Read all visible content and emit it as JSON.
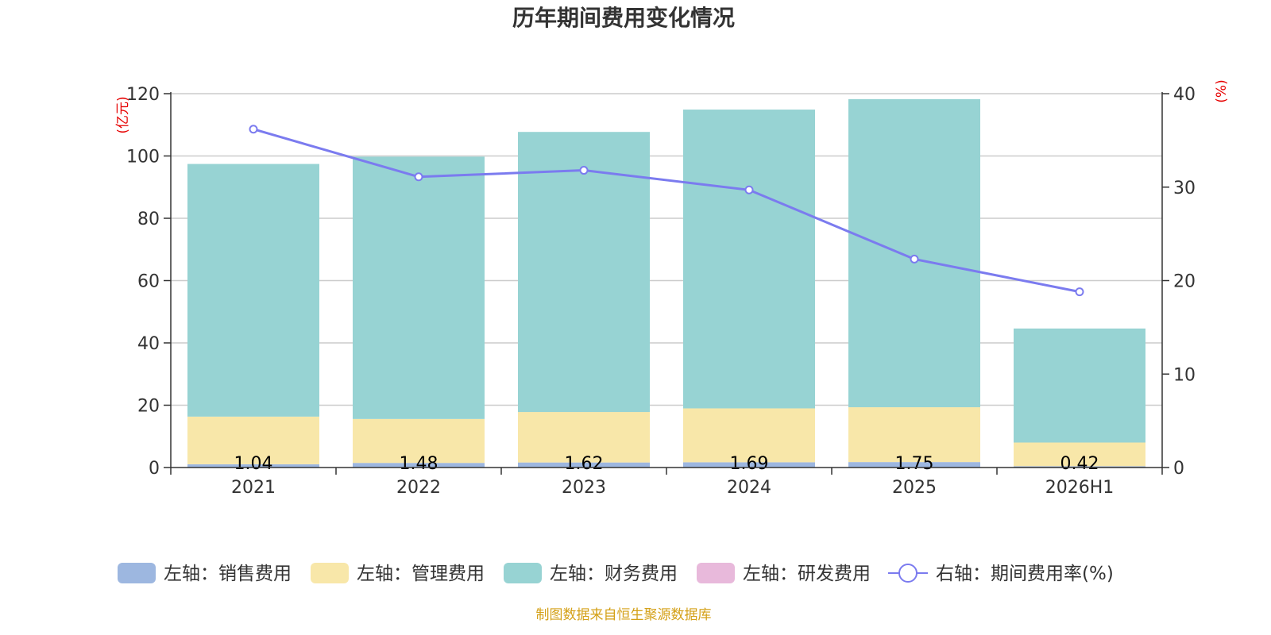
{
  "chart_data": {
    "type": "bar",
    "title": "历年期间费用变化情况",
    "categories": [
      "2021",
      "2022",
      "2023",
      "2024",
      "2025",
      "2026H1"
    ],
    "left_axis": {
      "unit": "(亿元)",
      "ylim": [
        0,
        120
      ],
      "ticks": [
        "0",
        "20",
        "40",
        "60",
        "80",
        "100",
        "120"
      ]
    },
    "right_axis": {
      "unit": "(%)",
      "ylim": [
        0,
        40
      ],
      "ticks": [
        "0",
        "10",
        "20",
        "30",
        "40"
      ]
    },
    "series": [
      {
        "name": "左轴：销售费用",
        "type": "bar",
        "axis": "left",
        "color": "#9db7e0",
        "values": [
          1.04,
          1.48,
          1.62,
          1.69,
          1.75,
          0.42
        ],
        "labels": [
          "1.04",
          "1.48",
          "1.62",
          "1.69",
          "1.75",
          "0.42"
        ]
      },
      {
        "name": "左轴：管理费用",
        "type": "bar",
        "axis": "left",
        "color": "#f8e7a9",
        "values": [
          15.3,
          14.1,
          16.2,
          17.3,
          17.6,
          7.6
        ]
      },
      {
        "name": "左轴：财务费用",
        "type": "bar",
        "axis": "left",
        "color": "#97d3d3",
        "values": [
          81.1,
          84.2,
          89.9,
          95.9,
          98.9,
          36.6
        ]
      },
      {
        "name": "左轴：研发费用",
        "type": "bar",
        "axis": "left",
        "color": "#e8b9db",
        "values": [
          0,
          0,
          0,
          0,
          0,
          0
        ]
      },
      {
        "name": "右轴：期间费用率(%)",
        "type": "line",
        "axis": "right",
        "color": "#7b7bef",
        "values": [
          36.2,
          31.1,
          31.8,
          29.7,
          22.3,
          18.8
        ]
      }
    ],
    "grid": true,
    "legend_position": "bottom"
  },
  "source": "制图数据来自恒生聚源数据库"
}
